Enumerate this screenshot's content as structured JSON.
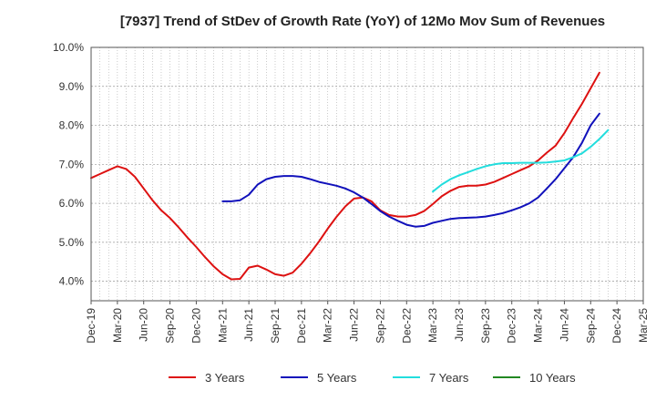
{
  "chart_data": {
    "type": "line",
    "title": "[7937]  Trend of StDev of Growth Rate (YoY) of 12Mo Mov Sum of Revenues",
    "xlabel": "",
    "ylabel": "",
    "ylim": [
      3.5,
      10.0
    ],
    "y_ticks": [
      4.0,
      5.0,
      6.0,
      7.0,
      8.0,
      9.0,
      10.0
    ],
    "y_tick_labels": [
      "4.0%",
      "5.0%",
      "6.0%",
      "7.0%",
      "8.0%",
      "9.0%",
      "10.0%"
    ],
    "x_tick_labels": [
      "Dec-19",
      "Mar-20",
      "Jun-20",
      "Sep-20",
      "Dec-20",
      "Mar-21",
      "Jun-21",
      "Sep-21",
      "Dec-21",
      "Mar-22",
      "Jun-22",
      "Sep-22",
      "Dec-22",
      "Mar-23",
      "Jun-23",
      "Sep-23",
      "Dec-23",
      "Mar-24",
      "Jun-24",
      "Sep-24",
      "Dec-24",
      "Mar-25"
    ],
    "x_start": "Dec-19",
    "months_total": 63,
    "grid": true,
    "legend_position": "bottom",
    "series": [
      {
        "name": "3 Years",
        "color": "#dd1111",
        "start_month": 0,
        "values": [
          6.65,
          6.75,
          6.85,
          6.95,
          6.88,
          6.68,
          6.38,
          6.08,
          5.82,
          5.62,
          5.38,
          5.12,
          4.88,
          4.62,
          4.38,
          4.18,
          4.05,
          4.06,
          4.35,
          4.4,
          4.3,
          4.18,
          4.14,
          4.22,
          4.45,
          4.72,
          5.02,
          5.35,
          5.65,
          5.92,
          6.12,
          6.15,
          6.05,
          5.82,
          5.7,
          5.66,
          5.66,
          5.7,
          5.8,
          5.98,
          6.18,
          6.32,
          6.42,
          6.45,
          6.45,
          6.48,
          6.55,
          6.65,
          6.75,
          6.85,
          6.95,
          7.1,
          7.3,
          7.48,
          7.8,
          8.18,
          8.55,
          8.95,
          9.35
        ]
      },
      {
        "name": "5 Years",
        "color": "#1111bb",
        "start_month": 15,
        "values": [
          6.05,
          6.05,
          6.08,
          6.22,
          6.48,
          6.62,
          6.68,
          6.7,
          6.7,
          6.68,
          6.62,
          6.55,
          6.5,
          6.45,
          6.38,
          6.28,
          6.15,
          5.98,
          5.8,
          5.66,
          5.55,
          5.45,
          5.4,
          5.42,
          5.5,
          5.55,
          5.6,
          5.62,
          5.63,
          5.64,
          5.66,
          5.7,
          5.75,
          5.82,
          5.9,
          6.0,
          6.15,
          6.38,
          6.62,
          6.9,
          7.18,
          7.55,
          8.0,
          8.3
        ]
      },
      {
        "name": "7 Years",
        "color": "#22dddd",
        "start_month": 39,
        "values": [
          6.3,
          6.48,
          6.62,
          6.72,
          6.8,
          6.88,
          6.95,
          7.0,
          7.03,
          7.03,
          7.04,
          7.04,
          7.04,
          7.05,
          7.07,
          7.1,
          7.18,
          7.28,
          7.45,
          7.65,
          7.88
        ]
      },
      {
        "name": "10 Years",
        "color": "#228822",
        "start_month": 0,
        "values": []
      }
    ]
  }
}
